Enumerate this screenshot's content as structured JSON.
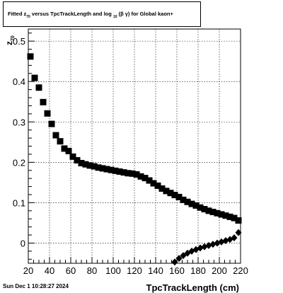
{
  "title": {
    "part1": "Fitted  z",
    "sub1": "70",
    "part2": " versus TpcTrackLength and log",
    "sub2": "10",
    "part3": "(β γ) for Global kaon+"
  },
  "footer": {
    "date": "Sun Dec  1 10:28:27 2024"
  },
  "chart_data": {
    "type": "scatter",
    "xlabel": "TpcTrackLength (cm)",
    "ylabel": "z_70",
    "xlim": [
      20,
      220
    ],
    "ylim": [
      -0.05,
      0.53
    ],
    "xticks": [
      20,
      40,
      60,
      80,
      100,
      120,
      140,
      160,
      180,
      200,
      220
    ],
    "yticks": [
      0,
      0.1,
      0.2,
      0.3,
      0.4,
      0.5
    ],
    "ytick_labels": [
      "0",
      "0.1",
      "0.2",
      "0.3",
      "0.4",
      "0.5"
    ],
    "grid": true,
    "series": [
      {
        "marker": "square",
        "color": "#000000",
        "x": [
          22,
          26,
          30,
          34,
          38,
          42,
          46,
          50,
          54,
          58,
          62,
          66,
          70,
          74,
          78,
          82,
          86,
          90,
          94,
          98,
          102,
          106,
          110,
          114,
          118,
          122,
          126,
          130,
          134,
          138,
          142,
          146,
          150,
          154,
          158,
          162,
          166,
          170,
          174,
          178,
          182,
          186,
          190,
          194,
          198,
          202,
          206,
          210,
          214,
          218
        ],
        "y": [
          0.462,
          0.409,
          0.385,
          0.349,
          0.321,
          0.295,
          0.267,
          0.252,
          0.234,
          0.228,
          0.214,
          0.205,
          0.198,
          0.195,
          0.192,
          0.19,
          0.187,
          0.185,
          0.183,
          0.181,
          0.179,
          0.177,
          0.175,
          0.173,
          0.172,
          0.17,
          0.165,
          0.161,
          0.155,
          0.148,
          0.142,
          0.135,
          0.129,
          0.124,
          0.119,
          0.114,
          0.107,
          0.102,
          0.097,
          0.093,
          0.088,
          0.084,
          0.08,
          0.077,
          0.074,
          0.071,
          0.068,
          0.065,
          0.062,
          0.056
        ]
      },
      {
        "marker": "diamond",
        "color": "#000000",
        "x": [
          158,
          162,
          166,
          170,
          174,
          178,
          182,
          186,
          190,
          194,
          198,
          202,
          206,
          210,
          214,
          218
        ],
        "y": [
          -0.047,
          -0.038,
          -0.031,
          -0.025,
          -0.02,
          -0.016,
          -0.012,
          -0.009,
          -0.006,
          -0.003,
          0.0,
          0.003,
          0.006,
          0.009,
          0.013,
          0.026
        ]
      }
    ]
  }
}
